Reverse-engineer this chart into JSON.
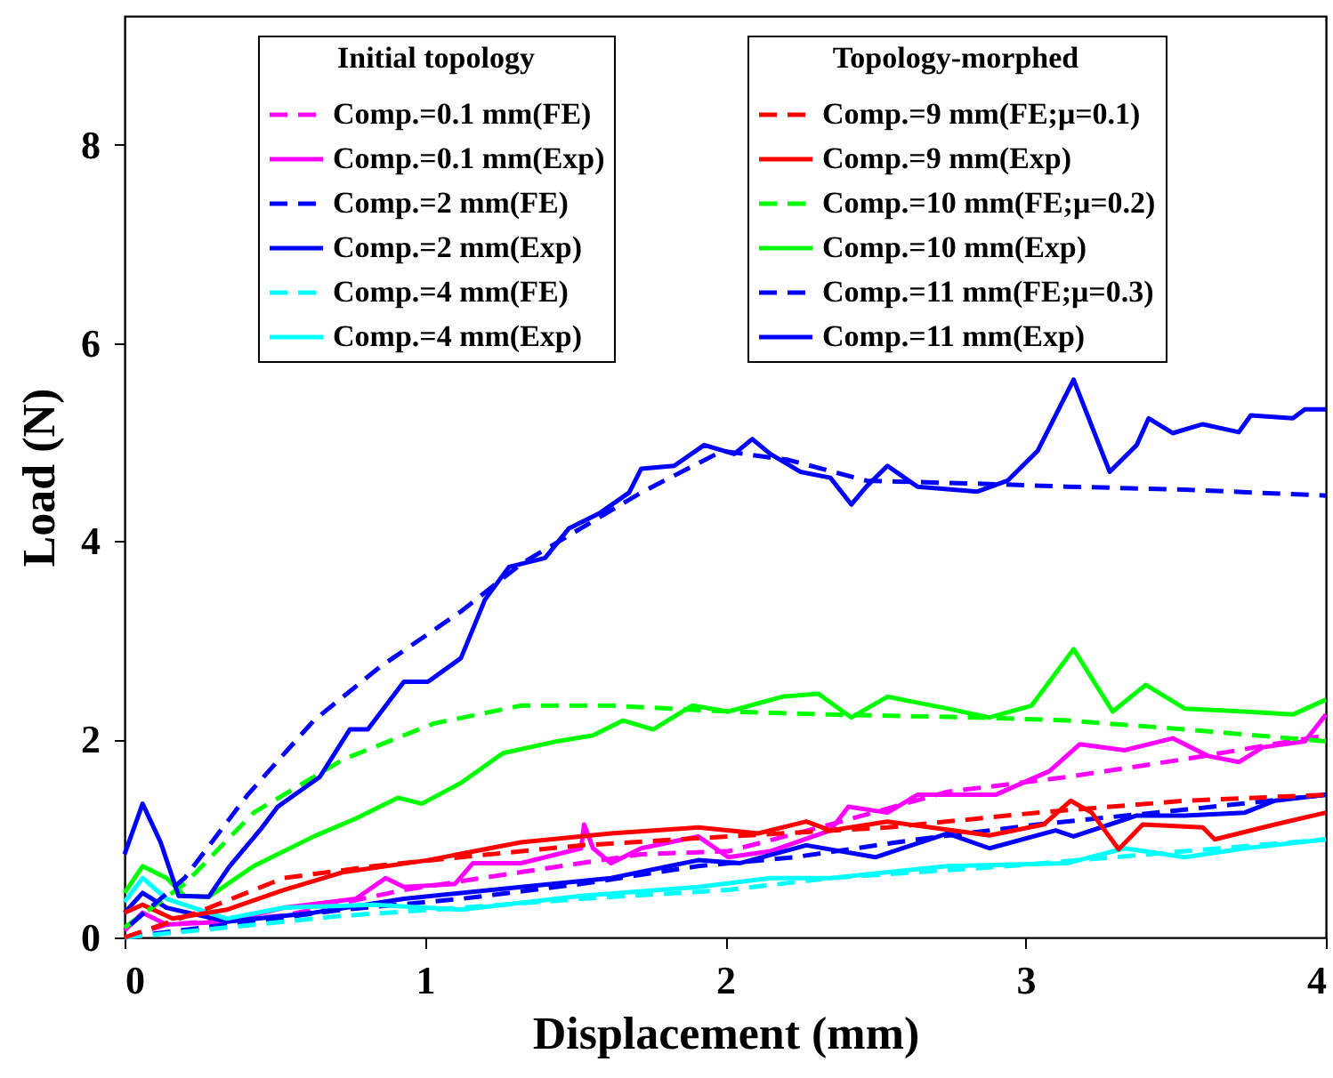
{
  "chart_data": {
    "type": "line",
    "xlabel": "Displacement (mm)",
    "ylabel": "Load (N)",
    "legend_title": [
      "Initial topology",
      "Topology-morphed"
    ],
    "xlim": [
      0,
      4
    ],
    "ylim": [
      0,
      9.3
    ],
    "xticks": [
      0,
      1,
      2,
      3,
      4
    ],
    "yticks": [
      0,
      2,
      4,
      6,
      8
    ],
    "grid": false,
    "legend": "top right",
    "series": [
      {
        "name": "Comp.=0.1 mm(FE)",
        "color": "#ff00ff",
        "line_style": "dashed",
        "x": [
          0,
          0.14,
          0.53,
          0.93,
          1.32,
          1.72,
          2.01,
          2.35,
          2.74,
          3.14,
          3.53,
          4.0
        ],
        "values": [
          0,
          0.13,
          0.22,
          0.48,
          0.66,
          0.84,
          0.87,
          1.14,
          1.47,
          1.62,
          1.8,
          2.04
        ]
      },
      {
        "name": "Comp.=0.1 mm(Exp)",
        "color": "#ff00ff",
        "line_style": "solid",
        "x": [
          0,
          0.06,
          0.14,
          0.34,
          0.53,
          0.77,
          0.87,
          0.93,
          1.1,
          1.16,
          1.32,
          1.52,
          1.53,
          1.56,
          1.62,
          1.72,
          1.91,
          2.01,
          2.15,
          2.35,
          2.41,
          2.54,
          2.64,
          2.9,
          3.08,
          3.18,
          3.33,
          3.49,
          3.61,
          3.71,
          3.79,
          3.93,
          4.0
        ],
        "values": [
          0.07,
          0.25,
          0.13,
          0.16,
          0.3,
          0.39,
          0.6,
          0.51,
          0.54,
          0.75,
          0.75,
          0.9,
          1.14,
          0.9,
          0.75,
          0.9,
          1.02,
          0.81,
          0.87,
          1.08,
          1.32,
          1.26,
          1.44,
          1.44,
          1.68,
          1.95,
          1.89,
          2.01,
          1.83,
          1.77,
          1.92,
          1.98,
          2.25
        ]
      },
      {
        "name": "Comp.=2 mm(FE)",
        "color": "#0000ff",
        "line_style": "dashed",
        "x": [
          0,
          0.34,
          0.73,
          1.12,
          1.52,
          1.91,
          2.23,
          2.64,
          3.04,
          3.53,
          4.0
        ],
        "values": [
          0,
          0.13,
          0.28,
          0.39,
          0.54,
          0.72,
          0.81,
          0.99,
          1.14,
          1.29,
          1.44
        ]
      },
      {
        "name": "Comp.=2 mm(Exp)",
        "color": "#0000ff",
        "line_style": "solid",
        "x": [
          0,
          0.06,
          0.14,
          0.34,
          0.63,
          0.93,
          1.32,
          1.62,
          1.91,
          2.05,
          2.27,
          2.5,
          2.74,
          2.88,
          3.1,
          3.16,
          3.37,
          3.53,
          3.73,
          3.83,
          4.0
        ],
        "values": [
          0.25,
          0.45,
          0.3,
          0.16,
          0.25,
          0.39,
          0.51,
          0.6,
          0.78,
          0.75,
          0.93,
          0.81,
          1.05,
          0.9,
          1.08,
          1.02,
          1.23,
          1.23,
          1.26,
          1.38,
          1.44
        ]
      },
      {
        "name": "Comp.=4 mm(FE)",
        "color": "#00ffff",
        "line_style": "dashed",
        "x": [
          0,
          0.34,
          0.73,
          1.12,
          1.52,
          2.01,
          2.35,
          2.94,
          3.53,
          4.0
        ],
        "values": [
          0,
          0.1,
          0.22,
          0.3,
          0.39,
          0.48,
          0.6,
          0.72,
          0.87,
          0.99
        ]
      },
      {
        "name": "Comp.=4 mm(Exp)",
        "color": "#00ffff",
        "line_style": "solid",
        "x": [
          0,
          0.06,
          0.14,
          0.34,
          0.53,
          0.83,
          1.12,
          1.52,
          1.91,
          2.15,
          2.35,
          2.74,
          3.14,
          3.33,
          3.53,
          3.73,
          4.0
        ],
        "values": [
          0.36,
          0.6,
          0.39,
          0.19,
          0.3,
          0.33,
          0.28,
          0.42,
          0.51,
          0.6,
          0.6,
          0.72,
          0.75,
          0.9,
          0.81,
          0.9,
          0.99
        ]
      },
      {
        "name": "Comp.=9 mm(FE;μ=0.1)",
        "color": "#ff0000",
        "line_style": "dashed",
        "x": [
          0,
          0.24,
          0.53,
          0.83,
          1.12,
          1.52,
          2.01,
          2.54,
          3.04,
          3.53,
          4.0
        ],
        "values": [
          0,
          0.25,
          0.6,
          0.72,
          0.81,
          0.93,
          1.02,
          1.11,
          1.26,
          1.38,
          1.44
        ]
      },
      {
        "name": "Comp.=9 mm(Exp)",
        "color": "#ff0000",
        "line_style": "solid",
        "x": [
          0,
          0.06,
          0.16,
          0.34,
          0.53,
          0.73,
          1.01,
          1.32,
          1.62,
          1.91,
          2.11,
          2.27,
          2.35,
          2.54,
          2.88,
          3.06,
          3.15,
          3.22,
          3.31,
          3.39,
          3.59,
          3.63,
          3.83,
          4.0
        ],
        "values": [
          0.25,
          0.33,
          0.19,
          0.28,
          0.48,
          0.66,
          0.78,
          0.96,
          1.05,
          1.11,
          1.05,
          1.17,
          1.08,
          1.17,
          1.03,
          1.14,
          1.38,
          1.26,
          0.89,
          1.14,
          1.11,
          0.99,
          1.14,
          1.26
        ]
      },
      {
        "name": "Comp.=10 mm(FE;μ=0.2)",
        "color": "#00ff00",
        "line_style": "dashed",
        "x": [
          0,
          0.2,
          0.43,
          0.73,
          1.03,
          1.32,
          1.62,
          2.01,
          2.35,
          2.84,
          3.14,
          3.53,
          4.0
        ],
        "values": [
          0.1,
          0.54,
          1.26,
          1.8,
          2.16,
          2.34,
          2.34,
          2.28,
          2.25,
          2.22,
          2.19,
          2.1,
          1.98
        ]
      },
      {
        "name": "Comp.=10 mm(Exp)",
        "color": "#00ff00",
        "line_style": "solid",
        "x": [
          0,
          0.06,
          0.14,
          0.2,
          0.28,
          0.43,
          0.63,
          0.77,
          0.91,
          0.99,
          1.12,
          1.26,
          1.44,
          1.56,
          1.66,
          1.76,
          1.89,
          2.01,
          2.19,
          2.31,
          2.42,
          2.54,
          2.74,
          2.88,
          3.02,
          3.16,
          3.29,
          3.4,
          3.53,
          3.73,
          3.89,
          4.0
        ],
        "values": [
          0.45,
          0.72,
          0.6,
          0.42,
          0.41,
          0.72,
          1.02,
          1.2,
          1.41,
          1.35,
          1.56,
          1.86,
          1.98,
          2.04,
          2.19,
          2.1,
          2.34,
          2.28,
          2.43,
          2.46,
          2.22,
          2.43,
          2.31,
          2.22,
          2.34,
          2.91,
          2.28,
          2.55,
          2.31,
          2.28,
          2.25,
          2.4
        ]
      },
      {
        "name": "Comp.=11 mm(FE;μ=0.3)",
        "color": "#0000ff",
        "line_style": "dashed",
        "x": [
          0.02,
          0.2,
          0.41,
          0.63,
          0.85,
          1.12,
          1.32,
          1.52,
          1.72,
          1.99,
          2.21,
          2.47,
          2.84,
          3.14,
          3.53,
          4.0
        ],
        "values": [
          0.13,
          0.6,
          1.44,
          2.19,
          2.73,
          3.29,
          3.77,
          4.13,
          4.49,
          4.91,
          4.82,
          4.61,
          4.58,
          4.55,
          4.52,
          4.46
        ]
      },
      {
        "name": "Comp.=11 mm(Exp)",
        "color": "#0000ff",
        "line_style": "solid",
        "x": [
          0,
          0.06,
          0.12,
          0.18,
          0.28,
          0.35,
          0.45,
          0.51,
          0.65,
          0.75,
          0.81,
          0.93,
          1.01,
          1.12,
          1.2,
          1.28,
          1.4,
          1.48,
          1.58,
          1.68,
          1.72,
          1.83,
          1.93,
          2.03,
          2.09,
          2.15,
          2.25,
          2.35,
          2.42,
          2.47,
          2.54,
          2.64,
          2.84,
          2.94,
          3.04,
          3.16,
          3.28,
          3.37,
          3.41,
          3.49,
          3.59,
          3.71,
          3.75,
          3.89,
          3.93,
          4.0
        ],
        "values": [
          0.84,
          1.35,
          0.96,
          0.42,
          0.41,
          0.72,
          1.08,
          1.32,
          1.62,
          2.1,
          2.1,
          2.58,
          2.58,
          2.82,
          3.41,
          3.74,
          3.83,
          4.13,
          4.28,
          4.49,
          4.73,
          4.76,
          4.97,
          4.88,
          5.03,
          4.88,
          4.7,
          4.64,
          4.37,
          4.55,
          4.76,
          4.55,
          4.5,
          4.61,
          4.91,
          5.63,
          4.7,
          4.97,
          5.24,
          5.09,
          5.18,
          5.1,
          5.27,
          5.24,
          5.33,
          5.33
        ]
      }
    ]
  }
}
